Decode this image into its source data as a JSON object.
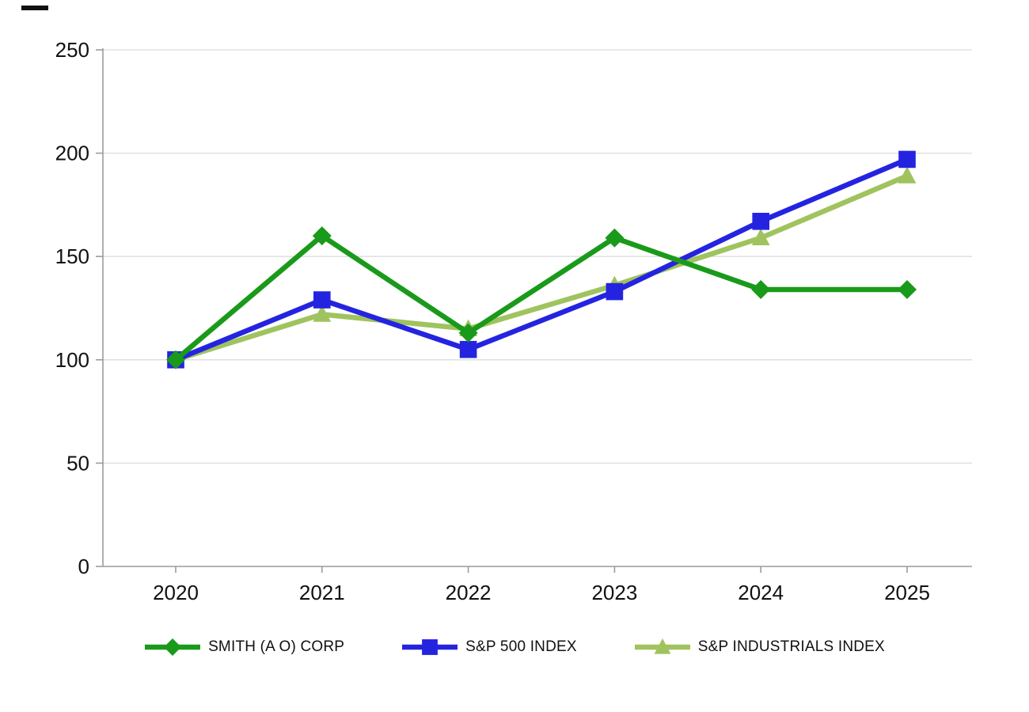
{
  "page": {
    "background": "#ffffff",
    "corner_mark_color": "#111111"
  },
  "chart_data": {
    "type": "line",
    "title": "",
    "xlabel": "",
    "ylabel": "",
    "x_categories": [
      "2020",
      "2021",
      "2022",
      "2023",
      "2024",
      "2025"
    ],
    "y_ticks": [
      0,
      50,
      100,
      150,
      200,
      250
    ],
    "ylim": [
      0,
      250
    ],
    "grid": true,
    "legend_position": "bottom",
    "axis_color": "#9c9c9c",
    "grid_color": "#dcdcdc",
    "tick_label_color": "#111111",
    "series": [
      {
        "name": "SMITH (A O) CORP",
        "color": "#1a9a1a",
        "marker": "diamond",
        "values": [
          100,
          160,
          113,
          159,
          134,
          134
        ]
      },
      {
        "name": "S&P 500 INDEX",
        "color": "#2424e0",
        "marker": "square",
        "values": [
          100,
          129,
          105,
          133,
          167,
          197
        ]
      },
      {
        "name": "S&P INDUSTRIALS INDEX",
        "color": "#9fc35e",
        "marker": "triangle",
        "values": [
          100,
          122,
          115,
          136,
          159,
          189
        ]
      }
    ]
  }
}
